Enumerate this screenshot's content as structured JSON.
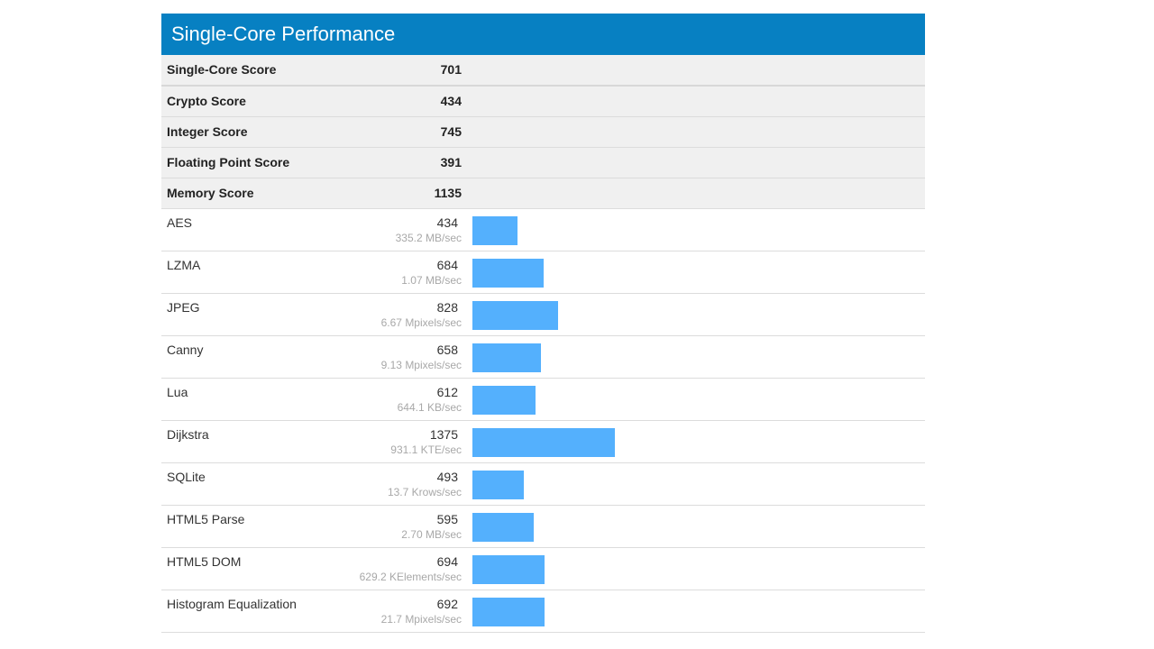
{
  "title": "Single-Core Performance",
  "scores": [
    {
      "label": "Single-Core Score",
      "value": "701"
    },
    {
      "label": "Crypto Score",
      "value": "434"
    },
    {
      "label": "Integer Score",
      "value": "745"
    },
    {
      "label": "Floating Point Score",
      "value": "391"
    },
    {
      "label": "Memory Score",
      "value": "1135"
    }
  ],
  "benchmarks": [
    {
      "name": "AES",
      "score": "434",
      "rate": "335.2 MB/sec"
    },
    {
      "name": "LZMA",
      "score": "684",
      "rate": "1.07 MB/sec"
    },
    {
      "name": "JPEG",
      "score": "828",
      "rate": "6.67 Mpixels/sec"
    },
    {
      "name": "Canny",
      "score": "658",
      "rate": "9.13 Mpixels/sec"
    },
    {
      "name": "Lua",
      "score": "612",
      "rate": "644.1 KB/sec"
    },
    {
      "name": "Dijkstra",
      "score": "1375",
      "rate": "931.1 KTE/sec"
    },
    {
      "name": "SQLite",
      "score": "493",
      "rate": "13.7 Krows/sec"
    },
    {
      "name": "HTML5 Parse",
      "score": "595",
      "rate": "2.70 MB/sec"
    },
    {
      "name": "HTML5 DOM",
      "score": "694",
      "rate": "629.2 KElements/sec"
    },
    {
      "name": "Histogram Equalization",
      "score": "692",
      "rate": "21.7 Mpixels/sec"
    }
  ],
  "colors": {
    "header": "#0780c2",
    "bar": "#54b0fd",
    "score_bg": "#f0f0f0"
  },
  "chart_data": {
    "type": "bar",
    "orientation": "horizontal",
    "title": "Single-Core Performance",
    "categories": [
      "AES",
      "LZMA",
      "JPEG",
      "Canny",
      "Lua",
      "Dijkstra",
      "SQLite",
      "HTML5 Parse",
      "HTML5 DOM",
      "Histogram Equalization"
    ],
    "values": [
      434,
      684,
      828,
      658,
      612,
      1375,
      493,
      595,
      694,
      692
    ],
    "rates": [
      "335.2 MB/sec",
      "1.07 MB/sec",
      "6.67 Mpixels/sec",
      "9.13 Mpixels/sec",
      "644.1 KB/sec",
      "931.1 KTE/sec",
      "13.7 Krows/sec",
      "2.70 MB/sec",
      "629.2 KElements/sec",
      "21.7 Mpixels/sec"
    ],
    "summary_scores": {
      "Single-Core Score": 701,
      "Crypto Score": 434,
      "Integer Score": 745,
      "Floating Point Score": 391,
      "Memory Score": 1135
    },
    "xlabel": "",
    "ylabel": "",
    "grid": false,
    "legend": "none"
  }
}
